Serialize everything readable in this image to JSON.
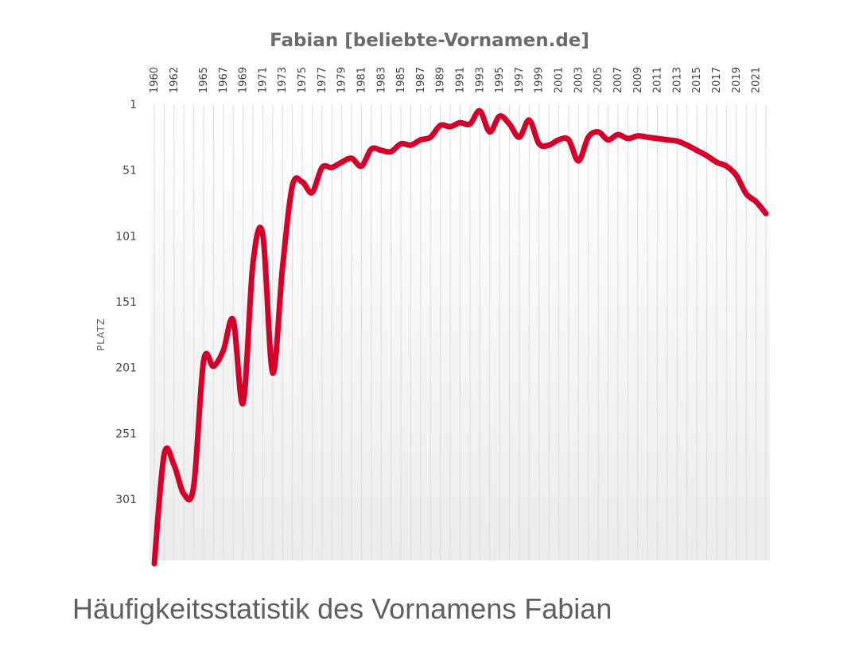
{
  "caption": "Häufigkeitsstatistik des Vornamens Fabian",
  "colors": {
    "line": "#d4002a",
    "grid": "#dcdcdc",
    "title": "#6b6b6b",
    "plot_bg_top": "#ffffff",
    "plot_bg_bottom": "#ececec"
  },
  "chart_data": {
    "type": "line",
    "title": "Fabian [beliebte-Vornamen.de]",
    "xlabel": "",
    "ylabel": "PLATZ",
    "y_reversed": true,
    "ylim": [
      1,
      350
    ],
    "yticks": [
      1,
      51,
      101,
      151,
      201,
      251,
      301
    ],
    "xlim": [
      1960,
      2022
    ],
    "xticks": [
      1960,
      1962,
      1965,
      1967,
      1969,
      1971,
      1973,
      1975,
      1977,
      1979,
      1981,
      1983,
      1985,
      1987,
      1989,
      1991,
      1993,
      1995,
      1997,
      1999,
      2001,
      2003,
      2005,
      2007,
      2009,
      2011,
      2013,
      2015,
      2017,
      2019,
      2021
    ],
    "grid": "vertical",
    "series": [
      {
        "x": [
          1960,
          1961,
          1962,
          1963,
          1964,
          1965,
          1966,
          1967,
          1968,
          1969,
          1970,
          1971,
          1972,
          1973,
          1974,
          1975,
          1976,
          1977,
          1978,
          1979,
          1980,
          1981,
          1982,
          1983,
          1984,
          1985,
          1986,
          1987,
          1988,
          1989,
          1990,
          1991,
          1992,
          1993,
          1994,
          1995,
          1996,
          1997,
          1998,
          1999,
          2000,
          2001,
          2002,
          2003,
          2004,
          2005,
          2006,
          2007,
          2008,
          2009,
          2010,
          2011,
          2012,
          2013,
          2014,
          2015,
          2016,
          2017,
          2018,
          2019,
          2020,
          2021,
          2022
        ],
        "y": [
          350,
          267,
          275,
          297,
          291,
          196,
          200,
          188,
          165,
          228,
          122,
          100,
          205,
          125,
          63,
          60,
          68,
          49,
          49,
          45,
          42,
          48,
          35,
          36,
          37,
          31,
          32,
          28,
          26,
          17,
          18,
          15,
          16,
          6,
          22,
          10,
          16,
          26,
          13,
          31,
          32,
          28,
          28,
          44,
          26,
          22,
          28,
          24,
          27,
          25,
          26,
          27,
          28,
          29,
          32,
          36,
          40,
          45,
          48,
          55,
          69,
          75,
          84
        ]
      }
    ]
  }
}
